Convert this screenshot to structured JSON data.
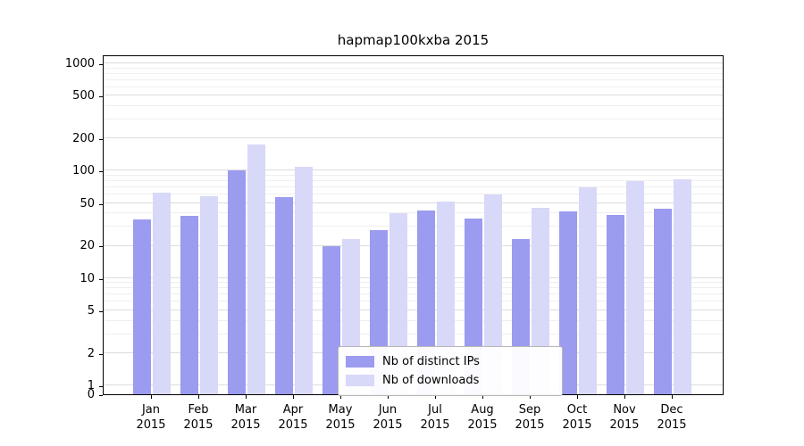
{
  "chart_data": {
    "type": "bar",
    "title": "hapmap100kxba 2015",
    "year_label": "2015",
    "categories": [
      "Jan",
      "Feb",
      "Mar",
      "Apr",
      "May",
      "Jun",
      "Jul",
      "Aug",
      "Sep",
      "Oct",
      "Nov",
      "Dec"
    ],
    "series": [
      {
        "name": "Nb of distinct IPs",
        "color": "#9b9bef",
        "values": [
          35,
          38,
          100,
          57,
          20,
          28,
          43,
          36,
          23,
          42,
          39,
          44
        ]
      },
      {
        "name": "Nb of downloads",
        "color": "#d8d8f8",
        "values": [
          62,
          58,
          175,
          108,
          23,
          40,
          52,
          60,
          45,
          70,
          80,
          83
        ]
      }
    ],
    "yscale": "log",
    "yticks": [
      0,
      1,
      2,
      5,
      10,
      20,
      50,
      100,
      200,
      500,
      1000
    ],
    "minor_yticks": [
      3,
      4,
      6,
      7,
      8,
      9,
      30,
      40,
      60,
      70,
      80,
      90,
      300,
      400,
      600,
      700,
      800,
      900
    ],
    "ylim": [
      0,
      1210
    ],
    "grid": true,
    "legend_position": "lower center",
    "xlabel": "",
    "ylabel": ""
  }
}
